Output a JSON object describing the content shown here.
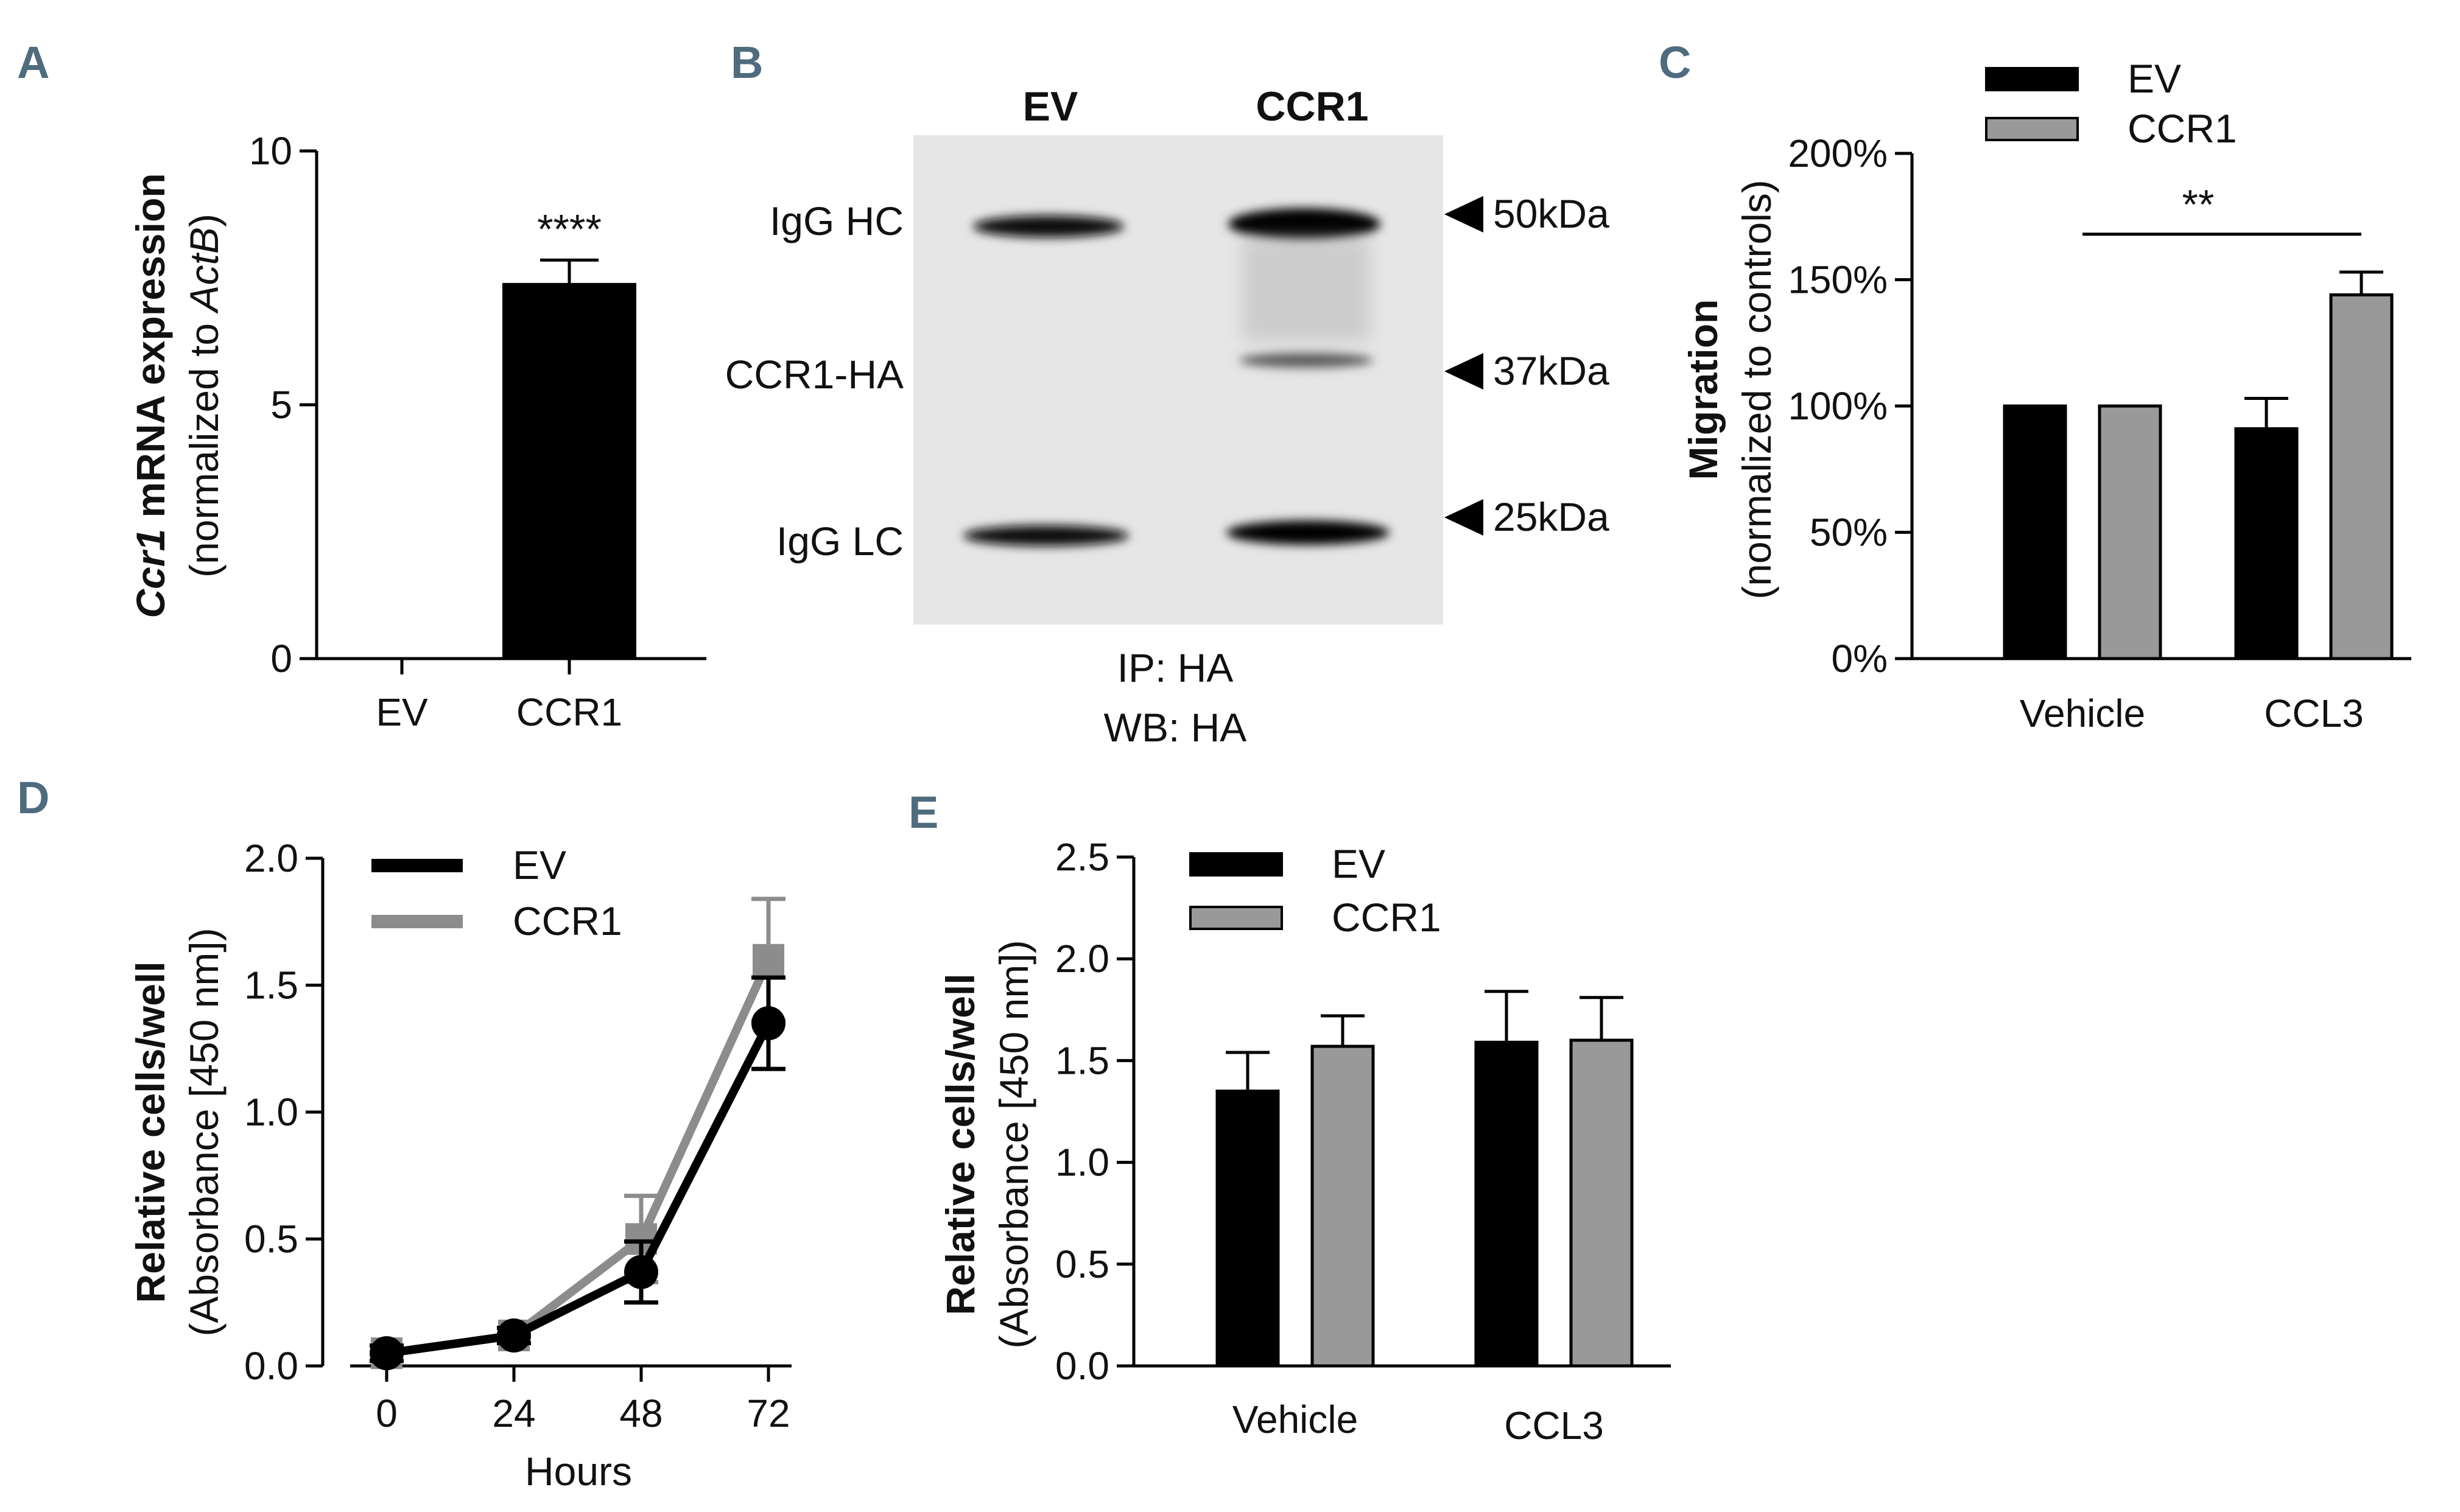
{
  "panels": {
    "A": {
      "letter": "A"
    },
    "B": {
      "letter": "B"
    },
    "C": {
      "letter": "C"
    },
    "D": {
      "letter": "D"
    },
    "E": {
      "letter": "E"
    }
  },
  "colors": {
    "ev": "#000000",
    "ccr1": "#999999",
    "ccr1_line": "#8c8c8c"
  },
  "blot": {
    "lanes": [
      "EV",
      "CCR1"
    ],
    "bands": [
      "IgG HC",
      "CCR1-HA",
      "IgG LC"
    ],
    "markers": [
      "50kDa",
      "37kDa",
      "25kDa"
    ],
    "caption_ip": "IP: HA",
    "caption_wb": "WB: HA"
  },
  "chart_data": [
    {
      "panel": "A",
      "type": "bar",
      "categories": [
        "EV",
        "CCR1"
      ],
      "values": [
        0.0,
        7.4
      ],
      "errors": [
        0.0,
        0.45
      ],
      "ylim": [
        0,
        10
      ],
      "yticks": [
        "0",
        "5",
        "10"
      ],
      "ylabel_italic": "Ccr1",
      "ylabel_bold": " mRNA expression",
      "ylabel_sub_prefix": "(normalized to ",
      "ylabel_sub_italic": "ActB",
      "ylabel_sub_suffix": ")",
      "annotation": "****"
    },
    {
      "panel": "C",
      "type": "bar",
      "categories": [
        "Vehicle",
        "CCL3"
      ],
      "series": [
        {
          "name": "EV",
          "values": [
            100,
            91
          ],
          "errors": [
            0,
            12
          ]
        },
        {
          "name": "CCR1",
          "values": [
            100,
            144
          ],
          "errors": [
            0,
            9
          ]
        }
      ],
      "ylim": [
        0,
        200
      ],
      "yticks": [
        "0%",
        "50%",
        "100%",
        "150%",
        "200%"
      ],
      "ylabel": "Migration",
      "ylabel_sub": "(normalized to controls)",
      "legend": "top-left",
      "annotation": "**"
    },
    {
      "panel": "D",
      "type": "line",
      "x": [
        0,
        24,
        48,
        72
      ],
      "series": [
        {
          "name": "EV",
          "values": [
            0.05,
            0.12,
            0.37,
            1.35
          ],
          "errors": [
            0.03,
            0.03,
            0.12,
            0.18
          ]
        },
        {
          "name": "CCR1",
          "values": [
            0.05,
            0.12,
            0.5,
            1.6
          ],
          "errors": [
            0.03,
            0.03,
            0.17,
            0.24
          ]
        }
      ],
      "xlim": [
        0,
        72
      ],
      "ylim": [
        0,
        2
      ],
      "xticks": [
        "0",
        "24",
        "48",
        "72"
      ],
      "yticks": [
        "0.0",
        "0.5",
        "1.0",
        "1.5",
        "2.0"
      ],
      "xlabel": "Hours",
      "ylabel": "Relative cells/well",
      "ylabel_sub": "(Absorbance [450 nm])",
      "legend": "top-left"
    },
    {
      "panel": "E",
      "type": "bar",
      "categories": [
        "Vehicle",
        "CCL3"
      ],
      "series": [
        {
          "name": "EV",
          "values": [
            1.35,
            1.59
          ],
          "errors": [
            0.19,
            0.25
          ]
        },
        {
          "name": "CCR1",
          "values": [
            1.57,
            1.6
          ],
          "errors": [
            0.15,
            0.21
          ]
        }
      ],
      "ylim": [
        0,
        2.5
      ],
      "yticks": [
        "0.0",
        "0.5",
        "1.0",
        "1.5",
        "2.0",
        "2.5"
      ],
      "ylabel": "Relative cells/well",
      "ylabel_sub": "(Absorbance [450 nm])",
      "legend": "top-left"
    }
  ]
}
